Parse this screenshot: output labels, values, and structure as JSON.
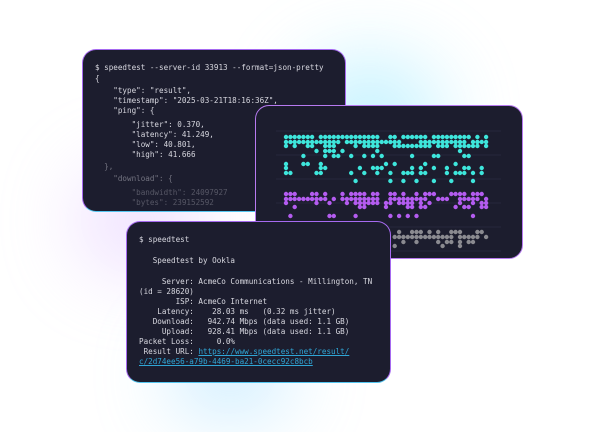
{
  "json_terminal": {
    "command": "$ speedtest --server-id 33913 --format=json-pretty",
    "lines": [
      "{",
      "    \"type\": \"result\",",
      "    \"timestamp\": \"2025-03-21T18:16:36Z\",",
      "    \"ping\": {",
      "        \"jitter\": 0.370,",
      "        \"latency\": 41.249,",
      "        \"low\": 40.801,",
      "        \"high\": 41.666",
      "  },",
      "    \"download\": {",
      "        \"bandwidth\": 24097927",
      "        \"bytes\": 239152592"
    ]
  },
  "dot_chart": {
    "colors": {
      "upper": "#3ee6dc",
      "middle": "#b45cf0",
      "lower": "#8a8a90"
    }
  },
  "cli_terminal": {
    "command": "$ speedtest",
    "title": "   Speedtest by Ookla",
    "lines": [
      "     Server: AcmeCo Communications - Millington, TN",
      "(id = 28620)",
      "        ISP: AcmeCo Internet",
      "    Latency:    28.03 ms   (0.32 ms jitter)",
      "   Download:   942.74 Mbps (data used: 1.1 GB)",
      "     Upload:   928.41 Mbps (data used: 1.1 GB)",
      "Packet Loss:     0.0%"
    ],
    "result_label": " Result URL: ",
    "result_url_1": "https://www.speedtest.net/result/",
    "result_url_2": "c/2d74ee56-a79b-4469-ba21-0cecc92c8bcb"
  }
}
